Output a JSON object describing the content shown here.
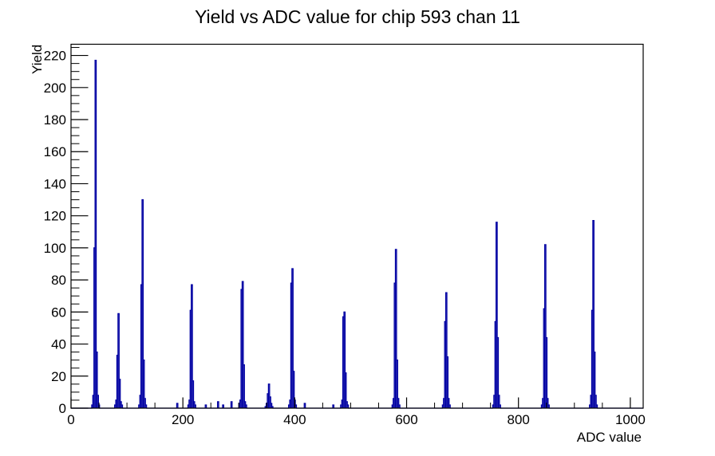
{
  "title": "Yield vs ADC value for chip 593 chan 11",
  "x_axis": {
    "label": "ADC value",
    "min": 0,
    "max": 1023,
    "major_ticks": [
      0,
      200,
      400,
      600,
      800,
      1000
    ],
    "major_tick_labels": [
      "0",
      "200",
      "400",
      "600",
      "800",
      "1000"
    ],
    "minor_tick_step": 50
  },
  "y_axis": {
    "label": "Yield",
    "min": 0,
    "max": 227,
    "major_ticks": [
      0,
      20,
      40,
      60,
      80,
      100,
      120,
      140,
      160,
      180,
      200,
      220
    ],
    "major_tick_labels": [
      "0",
      "20",
      "40",
      "60",
      "80",
      "100",
      "120",
      "140",
      "160",
      "180",
      "200",
      "220"
    ],
    "minor_tick_step": 5
  },
  "chart_data": {
    "type": "bar",
    "subtype": "histogram-outline",
    "title": "Yield vs ADC value for chip 593 chan 11",
    "xlabel": "ADC value",
    "ylabel": "Yield",
    "xlim": [
      0,
      1023
    ],
    "ylim": [
      0,
      227
    ],
    "grid": false,
    "legend": "none",
    "line_color": "#0000a2",
    "frame_color": "#000000",
    "profile_bin_width": 2,
    "peaks": [
      {
        "adc": 44,
        "yield": 217,
        "profile": [
          2,
          8,
          100,
          217,
          35,
          8,
          2
        ]
      },
      {
        "adc": 85,
        "yield": 59,
        "profile": [
          2,
          5,
          33,
          59,
          18,
          4,
          2
        ]
      },
      {
        "adc": 128,
        "yield": 130,
        "profile": [
          2,
          8,
          77,
          130,
          30,
          6,
          2
        ]
      },
      {
        "adc": 216,
        "yield": 77,
        "profile": [
          2,
          5,
          61,
          77,
          17,
          4,
          2
        ]
      },
      {
        "adc": 307,
        "yield": 79,
        "profile": [
          3,
          5,
          74,
          79,
          27,
          4,
          2
        ]
      },
      {
        "adc": 354,
        "yield": 15,
        "profile": [
          1,
          3,
          9,
          15,
          7,
          3,
          1
        ]
      },
      {
        "adc": 396,
        "yield": 87,
        "profile": [
          2,
          5,
          78,
          87,
          23,
          5,
          2
        ]
      },
      {
        "adc": 489,
        "yield": 60,
        "profile": [
          2,
          5,
          57,
          60,
          22,
          4,
          2
        ]
      },
      {
        "adc": 581,
        "yield": 99,
        "profile": [
          2,
          6,
          78,
          99,
          30,
          6,
          2
        ]
      },
      {
        "adc": 671,
        "yield": 72,
        "profile": [
          2,
          6,
          54,
          72,
          32,
          6,
          2
        ]
      },
      {
        "adc": 761,
        "yield": 116,
        "profile": [
          2,
          8,
          54,
          116,
          44,
          8,
          2
        ]
      },
      {
        "adc": 848,
        "yield": 102,
        "profile": [
          2,
          6,
          62,
          102,
          44,
          6,
          2
        ]
      },
      {
        "adc": 934,
        "yield": 117,
        "profile": [
          2,
          8,
          61,
          117,
          35,
          8,
          2
        ]
      }
    ],
    "minor_bumps": [
      {
        "adc": 190,
        "yield": 3
      },
      {
        "adc": 241,
        "yield": 2
      },
      {
        "adc": 263,
        "yield": 4
      },
      {
        "adc": 272,
        "yield": 2
      },
      {
        "adc": 287,
        "yield": 4
      },
      {
        "adc": 418,
        "yield": 3
      },
      {
        "adc": 469,
        "yield": 2
      }
    ]
  }
}
